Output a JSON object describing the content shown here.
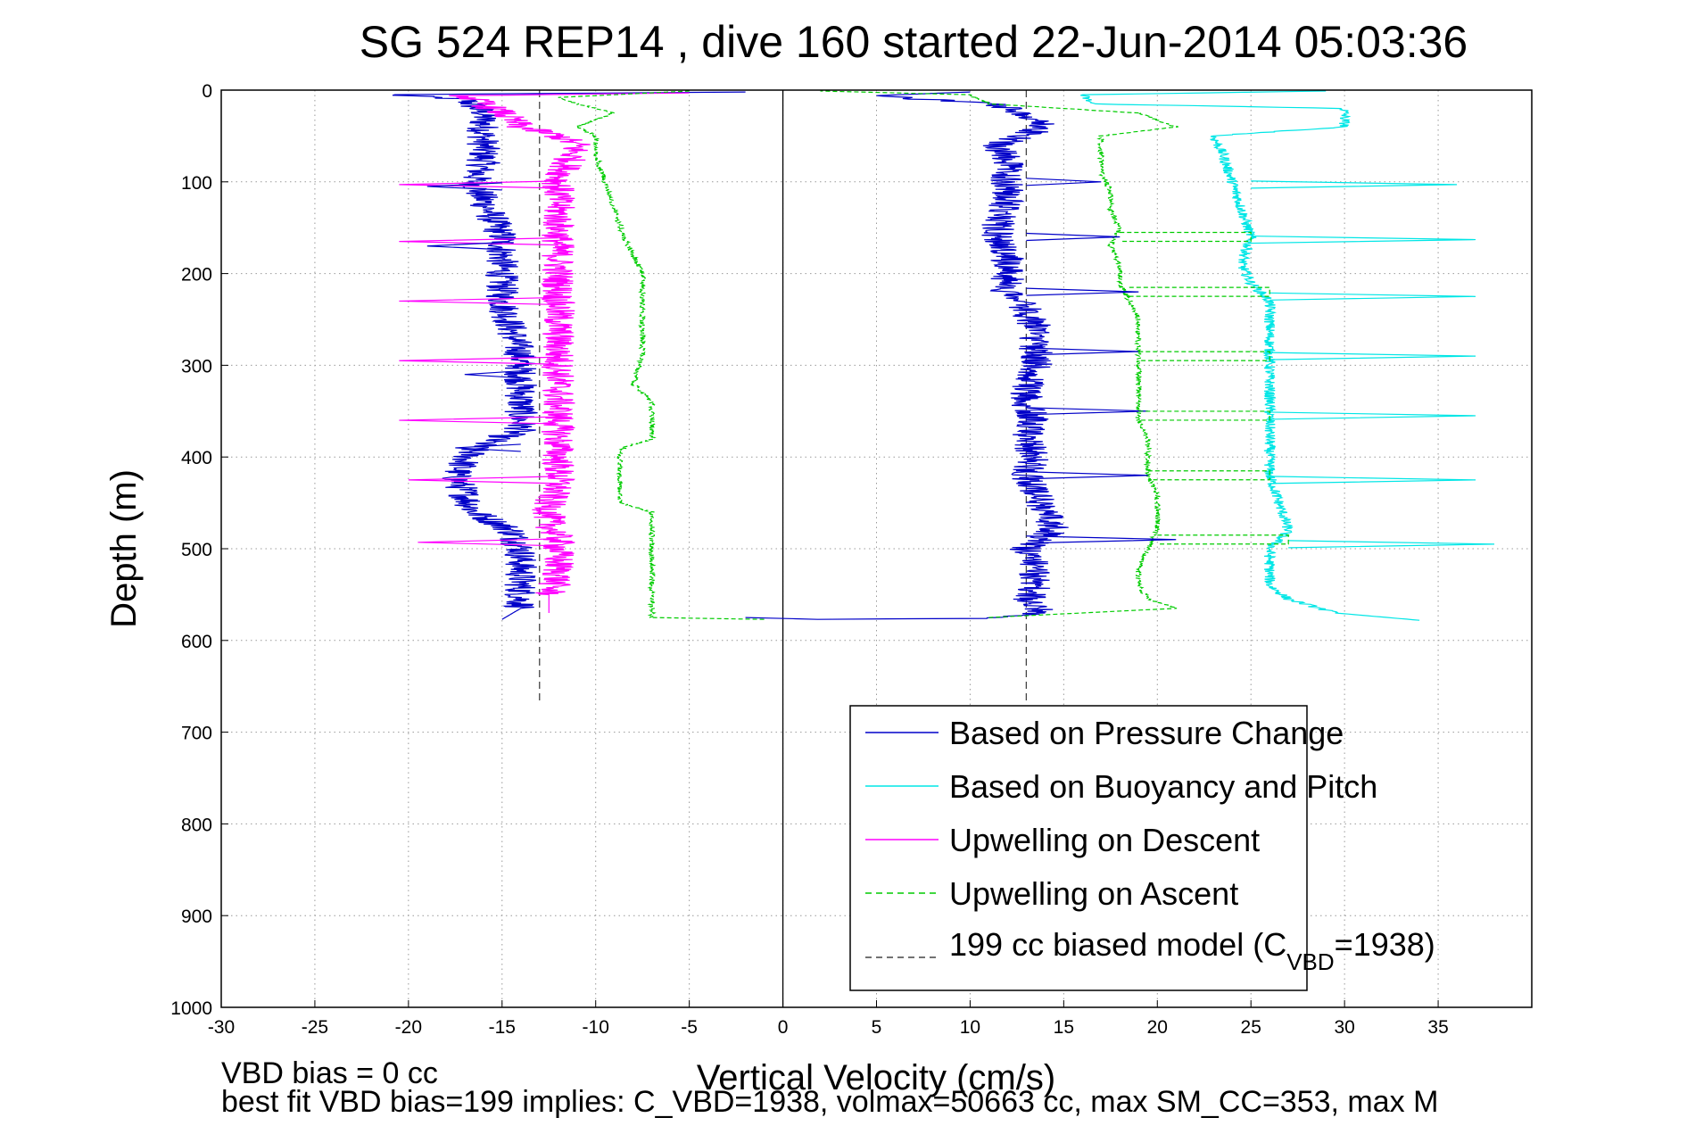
{
  "chart_data": {
    "type": "line",
    "title": "SG 524   REP14  , dive 160 started 22-Jun-2014 05:03:36",
    "xlabel": "Vertical Velocity (cm/s)",
    "ylabel": "Depth (m)",
    "xlim": [
      -30,
      40
    ],
    "ylim": [
      0,
      1000
    ],
    "y_reversed": true,
    "grid": true,
    "xticks": [
      -30,
      -25,
      -20,
      -15,
      -10,
      -5,
      0,
      5,
      10,
      15,
      20,
      25,
      30,
      35
    ],
    "yticks": [
      0,
      100,
      200,
      300,
      400,
      500,
      600,
      700,
      800,
      900,
      1000
    ],
    "legend_placement": "lower-right",
    "legend": [
      {
        "label": "Based on Pressure Change",
        "color": "#0000c8",
        "style": "solid"
      },
      {
        "label": "Based on Buoyancy and Pitch",
        "color": "#00e6e6",
        "style": "solid"
      },
      {
        "label": "Upwelling on Descent",
        "color": "#ff00ff",
        "style": "solid"
      },
      {
        "label": "Upwelling on Ascent",
        "color": "#00cc00",
        "style": "dashed"
      },
      {
        "label_main": "199 cc biased model (C",
        "label_sub": "VBD",
        "label_tail": "=1938)",
        "color": "#444444",
        "style": "dashed"
      }
    ],
    "series": [
      {
        "name": "Based on Pressure Change (descent)",
        "color": "#0000c8",
        "style": "solid",
        "noise": 0.9,
        "points": [
          [
            -2,
            2
          ],
          [
            -21,
            5
          ],
          [
            -17,
            10
          ],
          [
            -16,
            25
          ],
          [
            -16,
            40
          ],
          [
            -16,
            60
          ],
          [
            -16,
            80
          ],
          [
            -16.5,
            100
          ],
          [
            -16,
            120
          ],
          [
            -15.5,
            140
          ],
          [
            -15,
            160
          ],
          [
            -15,
            180
          ],
          [
            -15,
            200
          ],
          [
            -15,
            230
          ],
          [
            -14.5,
            260
          ],
          [
            -14,
            290
          ],
          [
            -14,
            320
          ],
          [
            -14,
            350
          ],
          [
            -14,
            370
          ],
          [
            -16.5,
            390
          ],
          [
            -17.5,
            420
          ],
          [
            -17,
            440
          ],
          [
            -16.5,
            460
          ],
          [
            -14.5,
            480
          ],
          [
            -14,
            500
          ],
          [
            -14,
            520
          ],
          [
            -14,
            545
          ],
          [
            -14,
            565
          ],
          [
            -15,
            577
          ]
        ]
      },
      {
        "name": "Based on Pressure Change (ascent)",
        "color": "#0000c8",
        "style": "solid",
        "noise": 0.9,
        "points": [
          [
            -2,
            575
          ],
          [
            2,
            577
          ],
          [
            10,
            576
          ],
          [
            14,
            570
          ],
          [
            13,
            560
          ],
          [
            13.5,
            540
          ],
          [
            13.5,
            520
          ],
          [
            13,
            500
          ],
          [
            14.5,
            480
          ],
          [
            14,
            460
          ],
          [
            13.5,
            440
          ],
          [
            13,
            420
          ],
          [
            13.5,
            400
          ],
          [
            13,
            380
          ],
          [
            13.5,
            360
          ],
          [
            13,
            340
          ],
          [
            13,
            320
          ],
          [
            13.5,
            300
          ],
          [
            13.5,
            280
          ],
          [
            13.5,
            260
          ],
          [
            13,
            240
          ],
          [
            12,
            220
          ],
          [
            12,
            200
          ],
          [
            12,
            180
          ],
          [
            11.5,
            160
          ],
          [
            11.5,
            140
          ],
          [
            12,
            120
          ],
          [
            12,
            100
          ],
          [
            12,
            80
          ],
          [
            11.5,
            60
          ],
          [
            14,
            40
          ],
          [
            13,
            25
          ],
          [
            11,
            15
          ],
          [
            5,
            6
          ],
          [
            10,
            2
          ]
        ]
      },
      {
        "name": "Based on Buoyancy and Pitch",
        "color": "#00e6e6",
        "style": "solid",
        "noise": 0.3,
        "points": [
          [
            29,
            1
          ],
          [
            16,
            5
          ],
          [
            16.5,
            15
          ],
          [
            30,
            20
          ],
          [
            30,
            40
          ],
          [
            23,
            50
          ],
          [
            23.5,
            70
          ],
          [
            24,
            100
          ],
          [
            24.5,
            130
          ],
          [
            25,
            160
          ],
          [
            24.5,
            190
          ],
          [
            25,
            210
          ],
          [
            26,
            230
          ],
          [
            26,
            260
          ],
          [
            26,
            290
          ],
          [
            26,
            320
          ],
          [
            26,
            360
          ],
          [
            26,
            390
          ],
          [
            26,
            420
          ],
          [
            26.5,
            450
          ],
          [
            27,
            480
          ],
          [
            26,
            500
          ],
          [
            26,
            520
          ],
          [
            26,
            540
          ],
          [
            27,
            555
          ],
          [
            29.5,
            570
          ],
          [
            34,
            578
          ]
        ]
      },
      {
        "name": "Upwelling on Descent",
        "color": "#ff00ff",
        "style": "solid",
        "noise": 0.9,
        "points": [
          [
            -5,
            3
          ],
          [
            -17,
            6
          ],
          [
            -16,
            15
          ],
          [
            -15,
            25
          ],
          [
            -14,
            40
          ],
          [
            -12,
            50
          ],
          [
            -11,
            60
          ],
          [
            -11.5,
            80
          ],
          [
            -12,
            100
          ],
          [
            -12,
            120
          ],
          [
            -12,
            140
          ],
          [
            -12,
            160
          ],
          [
            -12,
            180
          ],
          [
            -12,
            200
          ],
          [
            -12,
            230
          ],
          [
            -12,
            260
          ],
          [
            -12,
            290
          ],
          [
            -12,
            310
          ],
          [
            -12,
            330
          ],
          [
            -12,
            350
          ],
          [
            -12,
            370
          ],
          [
            -12,
            390
          ],
          [
            -12,
            410
          ],
          [
            -12,
            430
          ],
          [
            -12.5,
            450
          ],
          [
            -12.5,
            470
          ],
          [
            -12,
            490
          ],
          [
            -12,
            510
          ],
          [
            -12,
            530
          ],
          [
            -12.5,
            550
          ],
          [
            -12.5,
            570
          ]
        ]
      },
      {
        "name": "Upwelling on Ascent",
        "color": "#00cc00",
        "style": "dashed",
        "noise": 0.15,
        "points": [
          [
            -1,
            577
          ],
          [
            -7,
            575
          ],
          [
            -7,
            560
          ],
          [
            -7,
            540
          ],
          [
            -7,
            520
          ],
          [
            -7,
            500
          ],
          [
            -7,
            480
          ],
          [
            -7,
            460
          ],
          [
            -8.7,
            450
          ],
          [
            -8.7,
            420
          ],
          [
            -8.7,
            400
          ],
          [
            -8.5,
            390
          ],
          [
            -7,
            380
          ],
          [
            -7,
            360
          ],
          [
            -7,
            340
          ],
          [
            -8,
            320
          ],
          [
            -7.5,
            290
          ],
          [
            -7.5,
            260
          ],
          [
            -7.5,
            230
          ],
          [
            -7.5,
            200
          ],
          [
            -8,
            180
          ],
          [
            -8.5,
            160
          ],
          [
            -9,
            130
          ],
          [
            -9.5,
            100
          ],
          [
            -10,
            70
          ],
          [
            -10,
            50
          ],
          [
            -11,
            40
          ],
          [
            -9,
            25
          ],
          [
            -11,
            15
          ],
          [
            -12,
            8
          ],
          [
            -5,
            1
          ]
        ]
      },
      {
        "name": "Upwelling on Ascent (right)",
        "color": "#00cc00",
        "style": "dashed",
        "noise": 0.15,
        "points": [
          [
            11,
            575
          ],
          [
            21,
            565
          ],
          [
            19.5,
            555
          ],
          [
            19,
            540
          ],
          [
            19,
            520
          ],
          [
            19.5,
            500
          ],
          [
            20,
            480
          ],
          [
            20,
            460
          ],
          [
            20,
            440
          ],
          [
            19.5,
            420
          ],
          [
            19.5,
            400
          ],
          [
            19.5,
            380
          ],
          [
            19,
            360
          ],
          [
            19,
            340
          ],
          [
            19,
            320
          ],
          [
            19,
            300
          ],
          [
            19,
            270
          ],
          [
            19,
            250
          ],
          [
            18.5,
            230
          ],
          [
            18,
            210
          ],
          [
            18,
            190
          ],
          [
            17.5,
            170
          ],
          [
            18,
            150
          ],
          [
            17.5,
            130
          ],
          [
            17.5,
            110
          ],
          [
            17,
            90
          ],
          [
            17,
            70
          ],
          [
            17,
            50
          ],
          [
            21,
            40
          ],
          [
            19,
            25
          ],
          [
            11,
            15
          ],
          [
            10,
            5
          ],
          [
            2,
            1
          ]
        ]
      }
    ],
    "spikes": [
      {
        "color": "#ff00ff",
        "depth": 103,
        "from": -12,
        "to": -20.5
      },
      {
        "color": "#ff00ff",
        "depth": 165,
        "from": -12,
        "to": -20.5
      },
      {
        "color": "#ff00ff",
        "depth": 230,
        "from": -12,
        "to": -20.5
      },
      {
        "color": "#ff00ff",
        "depth": 295,
        "from": -12,
        "to": -20.5
      },
      {
        "color": "#ff00ff",
        "depth": 360,
        "from": -12,
        "to": -20.5
      },
      {
        "color": "#ff00ff",
        "depth": 425,
        "from": -12,
        "to": -20
      },
      {
        "color": "#ff00ff",
        "depth": 493,
        "from": -12,
        "to": -19.5
      },
      {
        "color": "#00e6e6",
        "depth": 103,
        "from": 25,
        "to": 36
      },
      {
        "color": "#00e6e6",
        "depth": 163,
        "from": 25,
        "to": 37
      },
      {
        "color": "#00e6e6",
        "depth": 225,
        "from": 26,
        "to": 37
      },
      {
        "color": "#00e6e6",
        "depth": 290,
        "from": 26,
        "to": 37
      },
      {
        "color": "#00e6e6",
        "depth": 355,
        "from": 26,
        "to": 37
      },
      {
        "color": "#00e6e6",
        "depth": 425,
        "from": 26,
        "to": 37
      },
      {
        "color": "#00e6e6",
        "depth": 495,
        "from": 27,
        "to": 38
      },
      {
        "color": "#0000c8",
        "depth": 100,
        "from": 13,
        "to": 17
      },
      {
        "color": "#0000c8",
        "depth": 160,
        "from": 13,
        "to": 18
      },
      {
        "color": "#0000c8",
        "depth": 220,
        "from": 13,
        "to": 19
      },
      {
        "color": "#0000c8",
        "depth": 285,
        "from": 13,
        "to": 19
      },
      {
        "color": "#0000c8",
        "depth": 350,
        "from": 13,
        "to": 19.5
      },
      {
        "color": "#0000c8",
        "depth": 420,
        "from": 13,
        "to": 19.5
      },
      {
        "color": "#0000c8",
        "depth": 490,
        "from": 13,
        "to": 21
      },
      {
        "color": "#0000c8",
        "depth": 105,
        "from": -15,
        "to": -19
      },
      {
        "color": "#0000c8",
        "depth": 170,
        "from": -15,
        "to": -19
      },
      {
        "color": "#0000c8",
        "depth": 310,
        "from": -14,
        "to": -17
      },
      {
        "color": "#0000c8",
        "depth": 390,
        "from": -14,
        "to": -17.5
      }
    ],
    "ascent_spikes": [
      {
        "depth": 160,
        "from": 18,
        "to": 25
      },
      {
        "depth": 220,
        "from": 18.5,
        "to": 26
      },
      {
        "depth": 290,
        "from": 19,
        "to": 26
      },
      {
        "depth": 355,
        "from": 19,
        "to": 26
      },
      {
        "depth": 420,
        "from": 19.5,
        "to": 26
      },
      {
        "depth": 490,
        "from": 20,
        "to": 27
      }
    ],
    "vlines": [
      {
        "x": 0,
        "color": "#000000",
        "style": "solid"
      },
      {
        "x": -13,
        "color": "#444444",
        "style": "dashed"
      },
      {
        "x": 13,
        "color": "#444444",
        "style": "dashed"
      }
    ]
  },
  "footer": {
    "line1": "VBD bias = 0 cc",
    "line2": "best fit VBD bias=199 implies: C_VBD=1938, volmax=50663 cc, max SM_CC=353, max M"
  }
}
